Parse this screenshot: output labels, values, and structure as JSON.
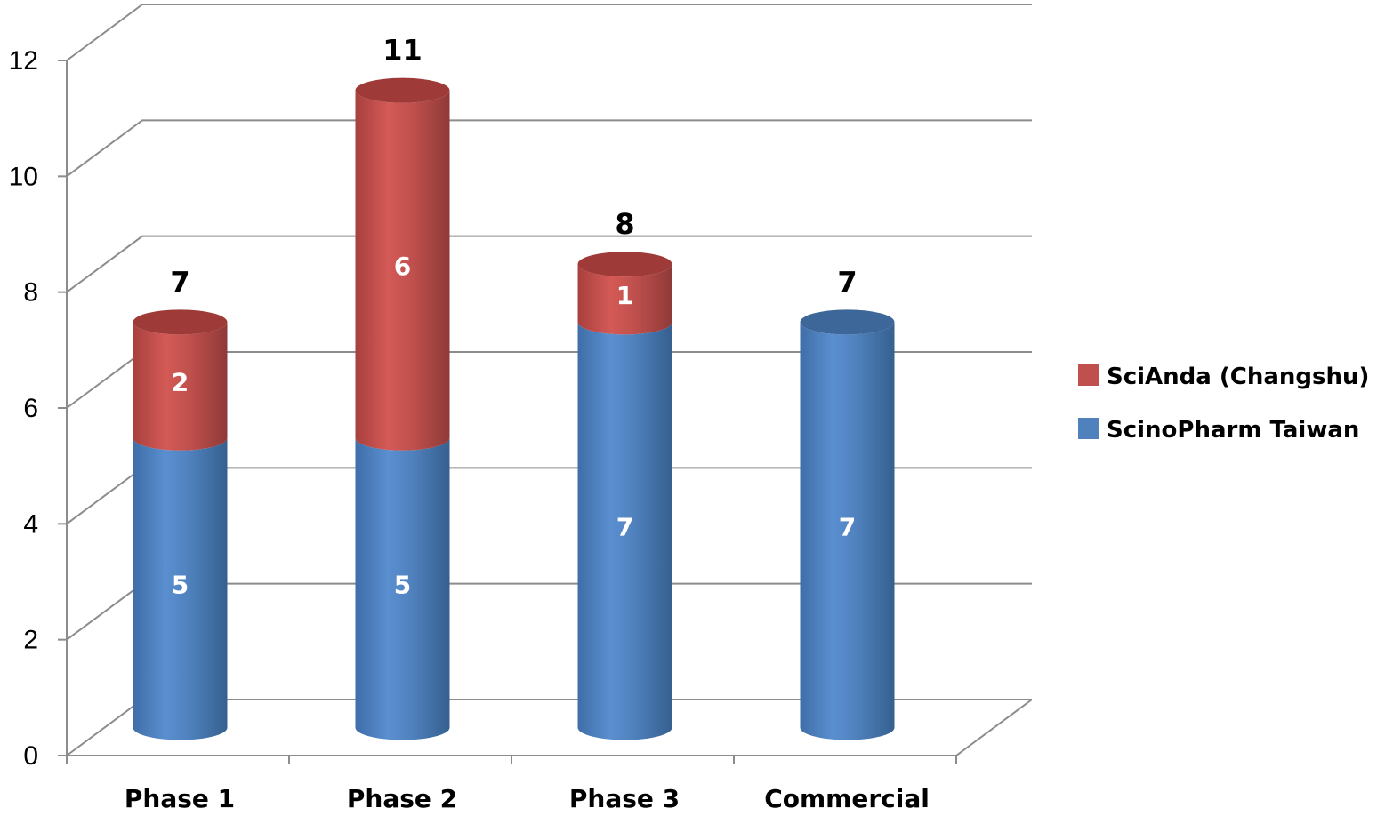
{
  "chart_data": {
    "type": "bar",
    "stacked": true,
    "style": "3d-cylinder",
    "title": "",
    "xlabel": "",
    "ylabel": "",
    "ylim": [
      0,
      12
    ],
    "yticks": [
      0,
      2,
      4,
      6,
      8,
      10,
      12
    ],
    "grid": true,
    "legend": "right",
    "categories": [
      "Phase 1",
      "Phase 2",
      "Phase 3",
      "Commercial"
    ],
    "series": [
      {
        "name": "ScinoPharm Taiwan",
        "values": [
          5,
          5,
          7,
          7
        ],
        "color": "#4f81bd"
      },
      {
        "name": "SciAnda (Changshu)",
        "values": [
          2,
          6,
          1,
          0
        ],
        "color": "#c0504d"
      }
    ],
    "totals": [
      7,
      11,
      8,
      7
    ]
  }
}
